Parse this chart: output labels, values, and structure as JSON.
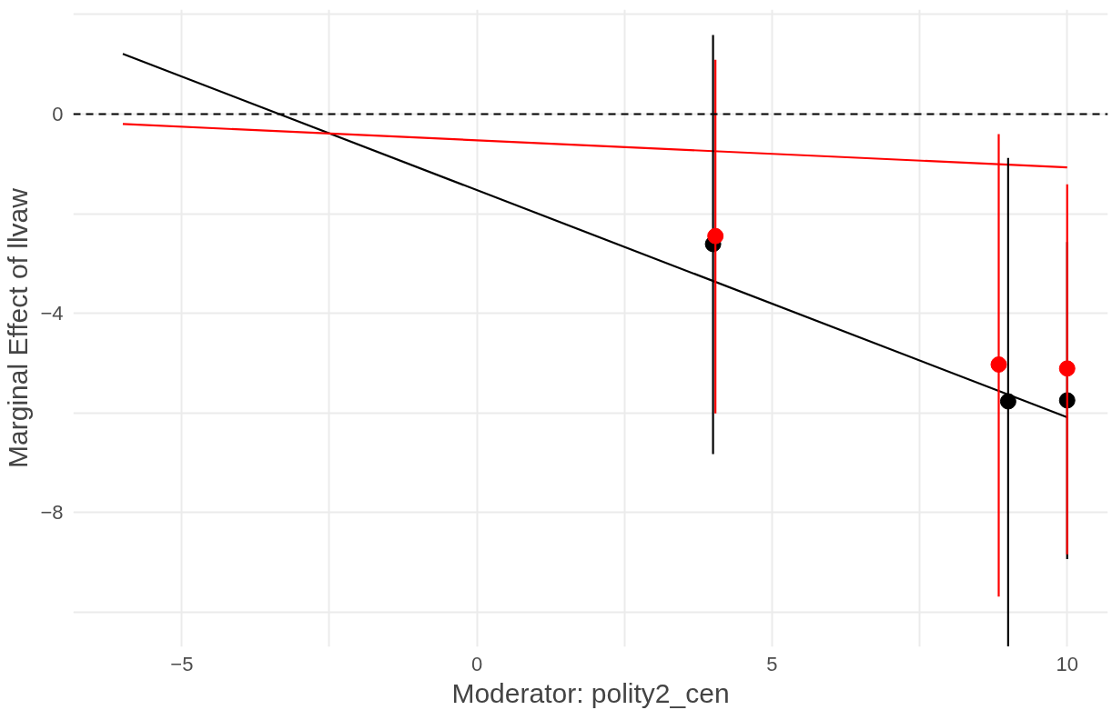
{
  "chart_data": {
    "type": "scatter",
    "xlabel": "Moderator: polity2_cen",
    "ylabel": "Marginal Effect of llvaw",
    "xlim": [
      -6.84,
      10.69
    ],
    "ylim": [
      -10.7,
      2.1
    ],
    "xticks": [
      -5,
      {
        "value": -2.5,
        "label": null
      },
      0,
      {
        "value": 2.5,
        "label": null
      },
      5,
      {
        "value": 7.5,
        "label": null
      },
      10
    ],
    "yticks": [
      {
        "value": -10,
        "label": null
      },
      -8,
      {
        "value": -6,
        "label": null
      },
      -4,
      {
        "value": -2,
        "label": null
      },
      0,
      {
        "value": 2,
        "label": null
      }
    ],
    "grid": true,
    "ref_lines": [
      {
        "axis": "y",
        "value": 0,
        "color": "#000000",
        "line_style": "dashed"
      }
    ],
    "series": [
      {
        "type": "line",
        "color": "#000000",
        "x": [
          -6,
          10
        ],
        "values": [
          1.21,
          -6.09
        ]
      },
      {
        "type": "line",
        "color": "#ff0000",
        "x": [
          -6,
          10
        ],
        "values": [
          -0.2,
          -1.07
        ]
      },
      {
        "color": "#000000",
        "marker": "circle",
        "x": [
          4,
          9,
          10
        ],
        "values": [
          -2.61,
          -5.77,
          -5.75
        ],
        "errors": [
          [
            -6.83,
            1.59
          ],
          [
            -10.69,
            -0.88
          ],
          [
            -8.94,
            -2.57
          ]
        ]
      },
      {
        "color": "#ff0000",
        "marker": "circle",
        "x": [
          4.04,
          8.84,
          10
        ],
        "values": [
          -2.45,
          -5.03,
          -5.11
        ],
        "errors": [
          [
            -6.01,
            1.09
          ],
          [
            -9.69,
            -0.4
          ],
          [
            -8.84,
            -1.41
          ]
        ]
      }
    ]
  }
}
